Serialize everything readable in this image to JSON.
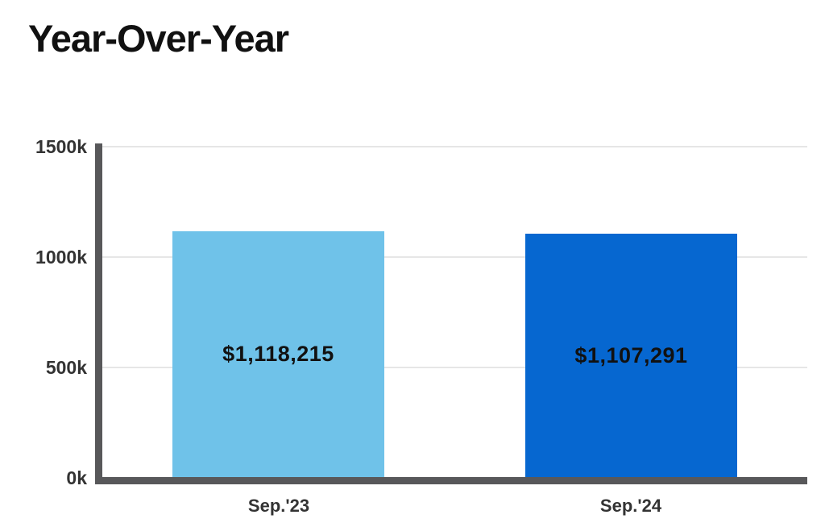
{
  "page": {
    "title": "Year-Over-Year"
  },
  "chart_data": {
    "type": "bar",
    "title": "Year-Over-Year",
    "categories": [
      "Sep.'23",
      "Sep.'24"
    ],
    "values": [
      1118215,
      1107291
    ],
    "value_labels": [
      "$1,118,215",
      "$1,107,291"
    ],
    "bar_colors": [
      "#6FC2E9",
      "#0667D0"
    ],
    "xlabel": "",
    "ylabel": "",
    "ylim": [
      0,
      1500000
    ],
    "yticks": [
      {
        "value": 0,
        "label": "0k"
      },
      {
        "value": 500000,
        "label": "500k"
      },
      {
        "value": 1000000,
        "label": "1000k"
      },
      {
        "value": 1500000,
        "label": "1500k"
      }
    ],
    "grid": "horizontal",
    "legend": "none",
    "colors": {
      "axis": "#58585A",
      "gridline": "#E6E6E6",
      "tick_text": "#333333",
      "value_label_text": "#111111",
      "background": "#FFFFFF"
    }
  }
}
